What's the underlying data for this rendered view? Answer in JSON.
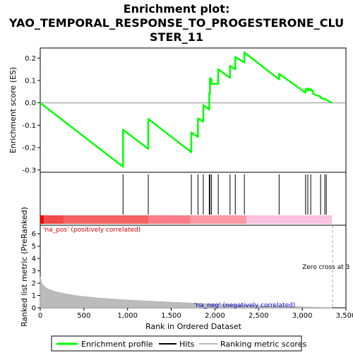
{
  "title_lines": [
    "Enrichment plot:",
    "YAO_TEMPORAL_RESPONSE_TO_PROGESTERONE_CLU",
    "STER_11"
  ],
  "colors": {
    "enrichment": "#00ff00",
    "hits": "#000000",
    "pos_label": "#cc0000",
    "neg_label": "#0000cc",
    "zero_line": "#aaaaaa",
    "metric_fill": "#bbbbbb"
  },
  "chart_data": [
    {
      "type": "line",
      "panel": "enrichment-score",
      "ylabel": "Enrichment score (ES)",
      "ylim": [
        -0.31,
        0.245
      ],
      "yticks": [
        "-0.3",
        "-0.2",
        "-0.1",
        "0.0",
        "0.1",
        "0.2"
      ],
      "series": [
        {
          "name": "Enrichment profile",
          "x": [
            0,
            948,
            948,
            1237,
            1237,
            1730,
            1730,
            1806,
            1806,
            1867,
            1867,
            1935,
            1935,
            1943,
            1943,
            1961,
            1961,
            2038,
            2038,
            2173,
            2173,
            2233,
            2233,
            2337,
            2337,
            2735,
            2735,
            3038,
            3038,
            3063,
            3063,
            3097,
            3097,
            3125,
            3125,
            3210,
            3210,
            3258,
            3258,
            3275,
            3275,
            3340
          ],
          "y": [
            0.0,
            -0.285,
            -0.12,
            -0.205,
            -0.072,
            -0.22,
            -0.132,
            -0.152,
            -0.07,
            -0.083,
            -0.01,
            -0.03,
            0.043,
            0.04,
            0.11,
            0.105,
            0.085,
            0.085,
            0.15,
            0.112,
            0.165,
            0.15,
            0.205,
            0.18,
            0.225,
            0.105,
            0.13,
            0.045,
            0.062,
            0.055,
            0.065,
            0.055,
            0.062,
            0.05,
            0.04,
            0.028,
            0.022,
            0.016,
            0.018,
            0.014,
            0.014,
            0.0
          ]
        }
      ]
    },
    {
      "type": "scatter",
      "panel": "hits",
      "series": [
        {
          "name": "Hits",
          "x": [
            948,
            1237,
            1730,
            1806,
            1867,
            1935,
            1943,
            1961,
            2038,
            2173,
            2233,
            2337,
            2735,
            3038,
            3063,
            3097,
            3210,
            3258,
            3275
          ]
        }
      ]
    },
    {
      "type": "area",
      "panel": "ranked-metric",
      "ylabel": "Ranked list metric (PreRanked)",
      "xlabel": "Rank in Ordered Dataset",
      "xlim": [
        0,
        3500
      ],
      "ylim": [
        0,
        6.7
      ],
      "yticks": [
        "0",
        "1",
        "2",
        "3",
        "4",
        "5",
        "6"
      ],
      "xticks": [
        "0",
        "500",
        "1,000",
        "1,500",
        "2,000",
        "2,500",
        "3,000",
        "3,500"
      ],
      "series": [
        {
          "name": "Ranking metric scores",
          "x": [
            0,
            10,
            20,
            40,
            60,
            80,
            100,
            150,
            200,
            300,
            400,
            500,
            700,
            900,
            1100,
            1300,
            1500,
            1700,
            1900,
            2100,
            2300,
            2500,
            2700,
            2900,
            3100,
            3300,
            3340
          ],
          "y": [
            2.5,
            2.2,
            2.0,
            1.8,
            1.68,
            1.58,
            1.5,
            1.38,
            1.27,
            1.12,
            1.0,
            0.92,
            0.78,
            0.68,
            0.6,
            0.53,
            0.46,
            0.4,
            0.34,
            0.28,
            0.23,
            0.18,
            0.14,
            0.1,
            0.06,
            0.02,
            0.0
          ]
        }
      ],
      "annotations": {
        "pos_label": "'na_pos' (positively correlated)",
        "neg_label": "'na_neg' (negatively correlated)",
        "zero_cross": "Zero cross at 3"
      }
    }
  ],
  "legend": {
    "enrichment_label": "Enrichment profile",
    "hits_label": "Hits",
    "metric_label": "Ranking metric scores"
  }
}
